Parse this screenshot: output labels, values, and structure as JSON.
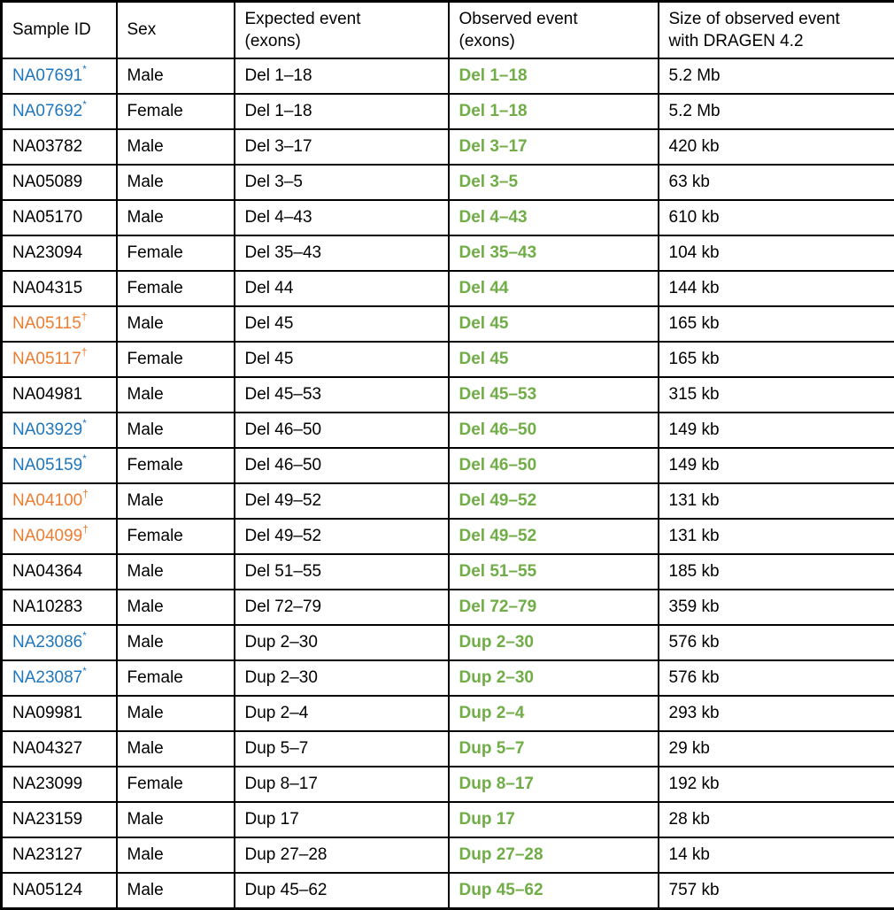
{
  "colors": {
    "blue_sample_id": "#1F76BC",
    "orange_sample_id": "#ED7D31",
    "green_observed": "#70AD47",
    "default_text": "#000000",
    "border": "#000000",
    "background": "#FFFFFF"
  },
  "table": {
    "columns": [
      {
        "label": "Sample ID"
      },
      {
        "label": "Sex"
      },
      {
        "label": "Expected event\n(exons)"
      },
      {
        "label": "Observed event\n(exons)"
      },
      {
        "label": "Size of observed event\nwith DRAGEN 4.2"
      }
    ],
    "rows": [
      {
        "sample_id": "NA07691",
        "superscript": "*",
        "id_color": "blue_sample_id",
        "sex": "Male",
        "expected": "Del 1–18",
        "observed": "Del 1–18",
        "size": "5.2 Mb"
      },
      {
        "sample_id": "NA07692",
        "superscript": "*",
        "id_color": "blue_sample_id",
        "sex": "Female",
        "expected": "Del 1–18",
        "observed": "Del 1–18",
        "size": "5.2 Mb"
      },
      {
        "sample_id": "NA03782",
        "superscript": "",
        "id_color": "",
        "sex": "Male",
        "expected": "Del 3–17",
        "observed": "Del 3–17",
        "size": "420 kb"
      },
      {
        "sample_id": "NA05089",
        "superscript": "",
        "id_color": "",
        "sex": "Male",
        "expected": "Del 3–5",
        "observed": "Del 3–5",
        "size": "63 kb"
      },
      {
        "sample_id": "NA05170",
        "superscript": "",
        "id_color": "",
        "sex": "Male",
        "expected": "Del 4–43",
        "observed": "Del 4–43",
        "size": "610 kb"
      },
      {
        "sample_id": "NA23094",
        "superscript": "",
        "id_color": "",
        "sex": "Female",
        "expected": "Del 35–43",
        "observed": "Del 35–43",
        "size": "104 kb"
      },
      {
        "sample_id": "NA04315",
        "superscript": "",
        "id_color": "",
        "sex": "Female",
        "expected": "Del 44",
        "observed": "Del 44",
        "size": "144 kb"
      },
      {
        "sample_id": "NA05115",
        "superscript": "†",
        "id_color": "orange_sample_id",
        "sex": "Male",
        "expected": "Del 45",
        "observed": "Del 45",
        "size": "165 kb"
      },
      {
        "sample_id": "NA05117",
        "superscript": "†",
        "id_color": "orange_sample_id",
        "sex": "Female",
        "expected": "Del 45",
        "observed": "Del 45",
        "size": "165 kb"
      },
      {
        "sample_id": "NA04981",
        "superscript": "",
        "id_color": "",
        "sex": "Male",
        "expected": "Del 45–53",
        "observed": "Del 45–53",
        "size": "315 kb"
      },
      {
        "sample_id": "NA03929",
        "superscript": "*",
        "id_color": "blue_sample_id",
        "sex": "Male",
        "expected": "Del 46–50",
        "observed": "Del 46–50",
        "size": "149 kb"
      },
      {
        "sample_id": "NA05159",
        "superscript": "*",
        "id_color": "blue_sample_id",
        "sex": "Female",
        "expected": "Del 46–50",
        "observed": "Del 46–50",
        "size": "149 kb"
      },
      {
        "sample_id": "NA04100",
        "superscript": "†",
        "id_color": "orange_sample_id",
        "sex": "Male",
        "expected": "Del 49–52",
        "observed": "Del 49–52",
        "size": "131 kb"
      },
      {
        "sample_id": "NA04099",
        "superscript": "†",
        "id_color": "orange_sample_id",
        "sex": "Female",
        "expected": "Del 49–52",
        "observed": "Del 49–52",
        "size": "131 kb"
      },
      {
        "sample_id": "NA04364",
        "superscript": "",
        "id_color": "",
        "sex": "Male",
        "expected": "Del 51–55",
        "observed": "Del 51–55",
        "size": "185 kb"
      },
      {
        "sample_id": "NA10283",
        "superscript": "",
        "id_color": "",
        "sex": "Male",
        "expected": "Del 72–79",
        "observed": "Del 72–79",
        "size": "359 kb"
      },
      {
        "sample_id": "NA23086",
        "superscript": "*",
        "id_color": "blue_sample_id",
        "sex": "Male",
        "expected": "Dup 2–30",
        "observed": "Dup 2–30",
        "size": "576 kb"
      },
      {
        "sample_id": "NA23087",
        "superscript": "*",
        "id_color": "blue_sample_id",
        "sex": "Female",
        "expected": "Dup 2–30",
        "observed": "Dup 2–30",
        "size": "576 kb"
      },
      {
        "sample_id": "NA09981",
        "superscript": "",
        "id_color": "",
        "sex": "Male",
        "expected": "Dup 2–4",
        "observed": "Dup 2–4",
        "size": "293 kb"
      },
      {
        "sample_id": "NA04327",
        "superscript": "",
        "id_color": "",
        "sex": "Male",
        "expected": "Dup 5–7",
        "observed": "Dup 5–7",
        "size": "29 kb"
      },
      {
        "sample_id": "NA23099",
        "superscript": "",
        "id_color": "",
        "sex": "Female",
        "expected": "Dup 8–17",
        "observed": "Dup 8–17",
        "size": "192 kb"
      },
      {
        "sample_id": "NA23159",
        "superscript": "",
        "id_color": "",
        "sex": "Male",
        "expected": "Dup 17",
        "observed": "Dup 17",
        "size": "28 kb"
      },
      {
        "sample_id": "NA23127",
        "superscript": "",
        "id_color": "",
        "sex": "Male",
        "expected": "Dup 27–28",
        "observed": "Dup 27–28",
        "size": "14 kb"
      },
      {
        "sample_id": "NA05124",
        "superscript": "",
        "id_color": "",
        "sex": "Male",
        "expected": "Dup 45–62",
        "observed": "Dup 45–62",
        "size": "757 kb"
      }
    ]
  }
}
